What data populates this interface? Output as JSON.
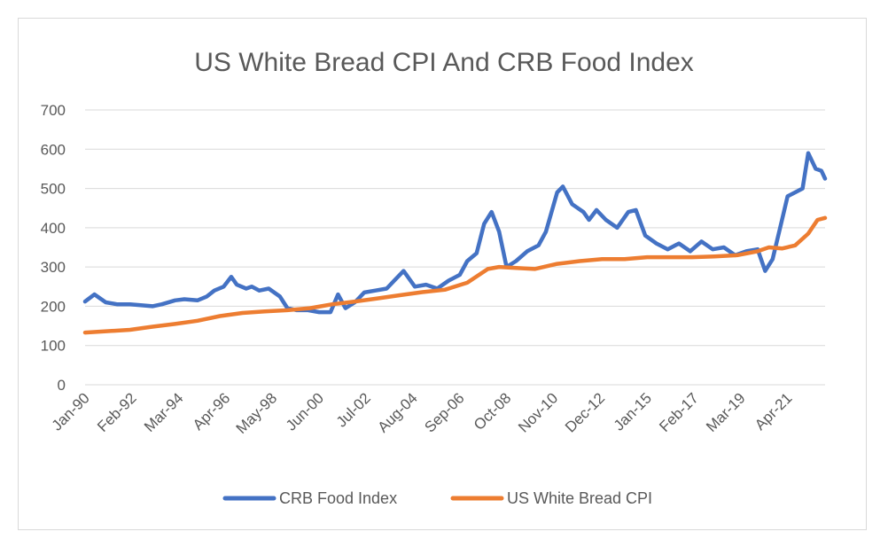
{
  "chart_data": {
    "type": "line",
    "title": "US White Bread CPI And CRB Food Index",
    "xlabel": "",
    "ylabel": "",
    "ylim": [
      0,
      700
    ],
    "yticks": [
      "0",
      "100",
      "200",
      "300",
      "400",
      "500",
      "600",
      "700"
    ],
    "x_tick_labels": [
      "Jan-90",
      "Feb-92",
      "Mar-94",
      "Apr-96",
      "May-98",
      "Jun-00",
      "Jul-02",
      "Aug-04",
      "Sep-06",
      "Oct-08",
      "Nov-10",
      "Dec-12",
      "Jan-15",
      "Feb-17",
      "Mar-19",
      "Apr-21"
    ],
    "x_range": [
      "1990-01",
      "2022-12"
    ],
    "grid": true,
    "legend": "bottom",
    "series": [
      {
        "name": "CRB Food Index",
        "color": "#4472c4",
        "points": [
          [
            "1990-01",
            212
          ],
          [
            "1990-06",
            230
          ],
          [
            "1990-12",
            210
          ],
          [
            "1991-06",
            205
          ],
          [
            "1992-01",
            205
          ],
          [
            "1992-06",
            203
          ],
          [
            "1993-01",
            200
          ],
          [
            "1993-06",
            205
          ],
          [
            "1994-01",
            215
          ],
          [
            "1994-06",
            218
          ],
          [
            "1995-01",
            215
          ],
          [
            "1995-06",
            225
          ],
          [
            "1995-10",
            240
          ],
          [
            "1996-03",
            250
          ],
          [
            "1996-07",
            275
          ],
          [
            "1996-10",
            255
          ],
          [
            "1997-03",
            245
          ],
          [
            "1997-06",
            250
          ],
          [
            "1997-10",
            240
          ],
          [
            "1998-03",
            245
          ],
          [
            "1998-09",
            225
          ],
          [
            "1999-01",
            195
          ],
          [
            "1999-06",
            190
          ],
          [
            "1999-12",
            190
          ],
          [
            "2000-06",
            185
          ],
          [
            "2000-12",
            185
          ],
          [
            "2001-04",
            230
          ],
          [
            "2001-08",
            195
          ],
          [
            "2002-01",
            210
          ],
          [
            "2002-06",
            235
          ],
          [
            "2002-12",
            240
          ],
          [
            "2003-06",
            245
          ],
          [
            "2003-10",
            265
          ],
          [
            "2004-03",
            290
          ],
          [
            "2004-09",
            250
          ],
          [
            "2005-03",
            255
          ],
          [
            "2005-09",
            245
          ],
          [
            "2006-03",
            265
          ],
          [
            "2006-09",
            280
          ],
          [
            "2007-01",
            315
          ],
          [
            "2007-06",
            335
          ],
          [
            "2007-10",
            410
          ],
          [
            "2008-02",
            440
          ],
          [
            "2008-06",
            390
          ],
          [
            "2008-10",
            300
          ],
          [
            "2009-03",
            315
          ],
          [
            "2009-09",
            340
          ],
          [
            "2010-03",
            355
          ],
          [
            "2010-07",
            390
          ],
          [
            "2011-01",
            490
          ],
          [
            "2011-04",
            505
          ],
          [
            "2011-09",
            460
          ],
          [
            "2012-03",
            440
          ],
          [
            "2012-06",
            420
          ],
          [
            "2012-10",
            445
          ],
          [
            "2013-03",
            420
          ],
          [
            "2013-09",
            400
          ],
          [
            "2014-03",
            440
          ],
          [
            "2014-07",
            445
          ],
          [
            "2014-12",
            380
          ],
          [
            "2015-06",
            360
          ],
          [
            "2015-12",
            345
          ],
          [
            "2016-06",
            360
          ],
          [
            "2016-12",
            340
          ],
          [
            "2017-06",
            365
          ],
          [
            "2017-12",
            345
          ],
          [
            "2018-06",
            350
          ],
          [
            "2018-12",
            330
          ],
          [
            "2019-06",
            340
          ],
          [
            "2019-12",
            345
          ],
          [
            "2020-04",
            290
          ],
          [
            "2020-08",
            320
          ],
          [
            "2021-01",
            420
          ],
          [
            "2021-04",
            480
          ],
          [
            "2021-08",
            490
          ],
          [
            "2021-12",
            500
          ],
          [
            "2022-03",
            590
          ],
          [
            "2022-07",
            550
          ],
          [
            "2022-10",
            545
          ],
          [
            "2022-12",
            525
          ]
        ]
      },
      {
        "name": "US White Bread CPI",
        "color": "#ed7d31",
        "points": [
          [
            "1990-01",
            133
          ],
          [
            "1992-01",
            140
          ],
          [
            "1993-01",
            148
          ],
          [
            "1994-01",
            155
          ],
          [
            "1995-01",
            163
          ],
          [
            "1996-01",
            175
          ],
          [
            "1997-01",
            183
          ],
          [
            "1998-01",
            187
          ],
          [
            "1999-01",
            190
          ],
          [
            "2000-01",
            195
          ],
          [
            "2001-01",
            205
          ],
          [
            "2002-01",
            212
          ],
          [
            "2003-01",
            220
          ],
          [
            "2004-01",
            228
          ],
          [
            "2005-01",
            236
          ],
          [
            "2006-01",
            242
          ],
          [
            "2007-01",
            260
          ],
          [
            "2007-12",
            295
          ],
          [
            "2008-06",
            300
          ],
          [
            "2009-01",
            298
          ],
          [
            "2010-01",
            295
          ],
          [
            "2011-01",
            308
          ],
          [
            "2012-01",
            315
          ],
          [
            "2013-01",
            320
          ],
          [
            "2014-01",
            320
          ],
          [
            "2015-01",
            325
          ],
          [
            "2016-01",
            325
          ],
          [
            "2017-01",
            325
          ],
          [
            "2018-01",
            327
          ],
          [
            "2019-01",
            330
          ],
          [
            "2019-12",
            340
          ],
          [
            "2020-06",
            350
          ],
          [
            "2021-01",
            347
          ],
          [
            "2021-08",
            355
          ],
          [
            "2022-03",
            385
          ],
          [
            "2022-08",
            420
          ],
          [
            "2022-12",
            425
          ]
        ]
      }
    ]
  }
}
